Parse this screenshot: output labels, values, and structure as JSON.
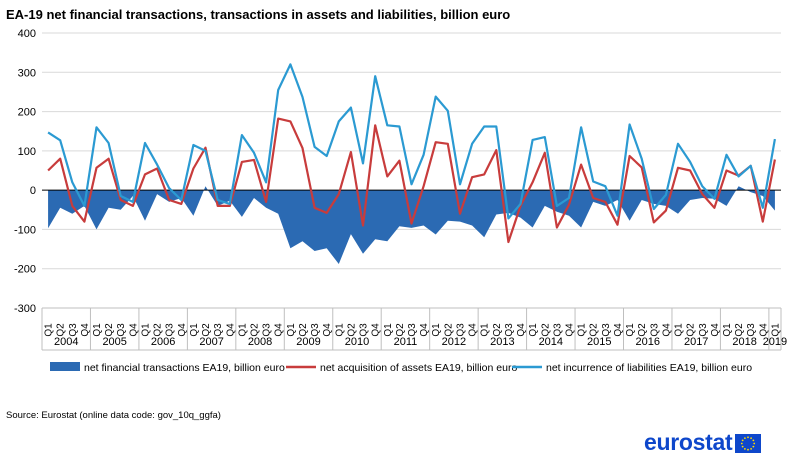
{
  "chart_data": {
    "type": "line",
    "title": "EA-19 net financial transactions, transactions in assets and liabilities, billion euro",
    "ylim": [
      -300,
      400
    ],
    "yticks": [
      -300,
      -200,
      -100,
      0,
      100,
      200,
      300,
      400
    ],
    "quarter_labels": [
      "Q1",
      "Q2",
      "Q3",
      "Q4"
    ],
    "years": [
      "2004",
      "2005",
      "2006",
      "2007",
      "2008",
      "2009",
      "2010",
      "2011",
      "2012",
      "2013",
      "2014",
      "2015",
      "2016",
      "2017",
      "2018",
      "2019"
    ],
    "categories": [
      "2004Q1",
      "2004Q2",
      "2004Q3",
      "2004Q4",
      "2005Q1",
      "2005Q2",
      "2005Q3",
      "2005Q4",
      "2006Q1",
      "2006Q2",
      "2006Q3",
      "2006Q4",
      "2007Q1",
      "2007Q2",
      "2007Q3",
      "2007Q4",
      "2008Q1",
      "2008Q2",
      "2008Q3",
      "2008Q4",
      "2009Q1",
      "2009Q2",
      "2009Q3",
      "2009Q4",
      "2010Q1",
      "2010Q2",
      "2010Q3",
      "2010Q4",
      "2011Q1",
      "2011Q2",
      "2011Q3",
      "2011Q4",
      "2012Q1",
      "2012Q2",
      "2012Q3",
      "2012Q4",
      "2013Q1",
      "2013Q2",
      "2013Q3",
      "2013Q4",
      "2014Q1",
      "2014Q2",
      "2014Q3",
      "2014Q4",
      "2015Q1",
      "2015Q2",
      "2015Q3",
      "2015Q4",
      "2016Q1",
      "2016Q2",
      "2016Q3",
      "2016Q4",
      "2017Q1",
      "2017Q2",
      "2017Q3",
      "2017Q4",
      "2018Q1",
      "2018Q2",
      "2018Q3",
      "2018Q4",
      "2019Q1"
    ],
    "series": [
      {
        "name": "net financial transactions EA19, billion euro",
        "style": "area",
        "color": "#2b6ab3",
        "values": [
          -97,
          -45,
          -60,
          -40,
          -100,
          -45,
          -50,
          -15,
          -78,
          -10,
          -30,
          -20,
          -65,
          10,
          -40,
          -27,
          -68,
          -20,
          -45,
          -60,
          -148,
          -130,
          -155,
          -148,
          -188,
          -112,
          -162,
          -125,
          -130,
          -92,
          -96,
          -90,
          -113,
          -78,
          -80,
          -90,
          -120,
          -62,
          -58,
          -70,
          -95,
          -40,
          -55,
          -65,
          -95,
          -30,
          -40,
          -25,
          -78,
          -25,
          -35,
          -40,
          -60,
          -25,
          -20,
          -22,
          -40,
          10,
          -5,
          -15,
          -52
        ]
      },
      {
        "name": "net acquisition of assets EA19, billion euro",
        "style": "line",
        "color": "#c83c3c",
        "values": [
          50,
          80,
          -40,
          -80,
          57,
          80,
          -25,
          -40,
          40,
          55,
          -25,
          -35,
          55,
          108,
          -40,
          -40,
          72,
          77,
          -30,
          182,
          175,
          107,
          -45,
          -58,
          -10,
          97,
          -90,
          165,
          35,
          75,
          -85,
          10,
          122,
          118,
          -60,
          33,
          40,
          102,
          -132,
          -40,
          20,
          95,
          -95,
          -37,
          65,
          -20,
          -30,
          -88,
          87,
          58,
          -82,
          -52,
          57,
          50,
          -10,
          -45,
          50,
          37,
          62,
          -80,
          78
        ]
      },
      {
        "name": "net incurrence of liabilities EA19, billion euro",
        "style": "line",
        "color": "#2b9ad2",
        "values": [
          147,
          127,
          20,
          -40,
          160,
          120,
          -15,
          -30,
          120,
          65,
          5,
          -25,
          115,
          100,
          -25,
          -35,
          140,
          95,
          20,
          255,
          320,
          237,
          110,
          87,
          175,
          210,
          68,
          290,
          165,
          162,
          15,
          90,
          238,
          202,
          15,
          118,
          162,
          162,
          -72,
          -35,
          128,
          135,
          -40,
          -20,
          160,
          22,
          10,
          -65,
          167,
          80,
          -48,
          -12,
          118,
          72,
          10,
          -22,
          90,
          35,
          62,
          -45,
          130
        ]
      }
    ]
  },
  "source": "Source: Eurostat (online data code: gov_10q_ggfa)",
  "logo": {
    "text": "eurostat",
    "flag_color": "#0e47cb",
    "star_color": "#ffdd00"
  }
}
